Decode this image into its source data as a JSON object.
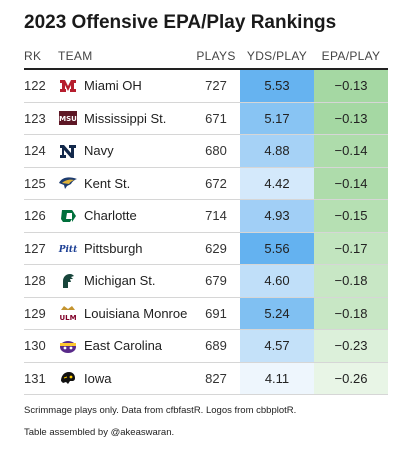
{
  "title": "2023 Offensive EPA/Play Rankings",
  "columns": {
    "rk": "RK",
    "team": "TEAM",
    "plays": "PLAYS",
    "yds": "YDS/PLAY",
    "epa": "EPA/PLAY"
  },
  "rows": [
    {
      "rk": "122",
      "team": "Miami OH",
      "plays": "727",
      "yds": "5.53",
      "epa": "−0.13",
      "logo": "miami-oh-logo-icon",
      "yds_color": "#66b3f0",
      "epa_color": "#a5d8a3"
    },
    {
      "rk": "123",
      "team": "Mississippi St.",
      "plays": "671",
      "yds": "5.17",
      "epa": "−0.13",
      "logo": "mississippi-state-logo-icon",
      "yds_color": "#88c4f3",
      "epa_color": "#a5d8a3"
    },
    {
      "rk": "124",
      "team": "Navy",
      "plays": "680",
      "yds": "4.88",
      "epa": "−0.14",
      "logo": "navy-logo-icon",
      "yds_color": "#a6d2f6",
      "epa_color": "#aedcab"
    },
    {
      "rk": "125",
      "team": "Kent St.",
      "plays": "672",
      "yds": "4.42",
      "epa": "−0.14",
      "logo": "kent-state-logo-icon",
      "yds_color": "#d4e9fb",
      "epa_color": "#aedcab"
    },
    {
      "rk": "126",
      "team": "Charlotte",
      "plays": "714",
      "yds": "4.93",
      "epa": "−0.15",
      "logo": "charlotte-logo-icon",
      "yds_color": "#a1cff6",
      "epa_color": "#b6e0b3"
    },
    {
      "rk": "127",
      "team": "Pittsburgh",
      "plays": "629",
      "yds": "5.56",
      "epa": "−0.17",
      "logo": "pittsburgh-logo-icon",
      "yds_color": "#64b2f0",
      "epa_color": "#c2e5bf"
    },
    {
      "rk": "128",
      "team": "Michigan St.",
      "plays": "679",
      "yds": "4.60",
      "epa": "−0.18",
      "logo": "michigan-state-logo-icon",
      "yds_color": "#c0dff9",
      "epa_color": "#c8e7c5"
    },
    {
      "rk": "129",
      "team": "Louisiana Monroe",
      "plays": "691",
      "yds": "5.24",
      "epa": "−0.18",
      "logo": "louisiana-monroe-logo-icon",
      "yds_color": "#80c0f2",
      "epa_color": "#c8e7c5"
    },
    {
      "rk": "130",
      "team": "East Carolina",
      "plays": "689",
      "yds": "4.57",
      "epa": "−0.23",
      "logo": "east-carolina-logo-icon",
      "yds_color": "#c4e1f9",
      "epa_color": "#dcf0da"
    },
    {
      "rk": "131",
      "team": "Iowa",
      "plays": "827",
      "yds": "4.11",
      "epa": "−0.26",
      "logo": "iowa-logo-icon",
      "yds_color": "#eef6fd",
      "epa_color": "#e8f5e6"
    }
  ],
  "footer": {
    "line1": "Scrimmage plays only. Data from cfbfastR. Logos from cbbplotR.",
    "line2": "Table assembled by @akeaswaran."
  }
}
